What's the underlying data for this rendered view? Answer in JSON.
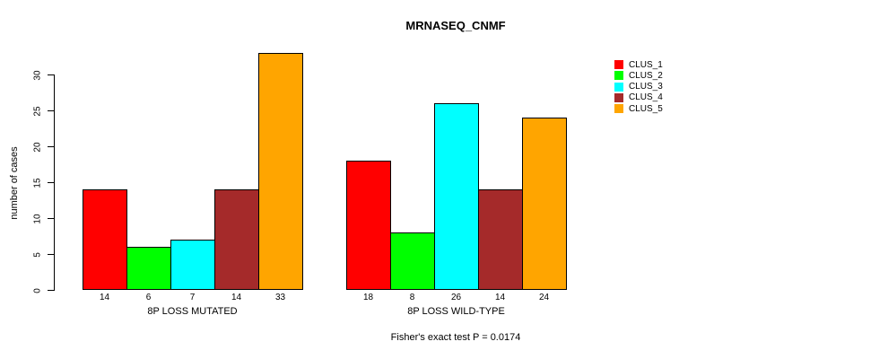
{
  "chart_data": {
    "type": "bar",
    "title": "MRNASEQ_CNMF",
    "ylabel": "number of cases",
    "xlabel": "",
    "groups": [
      "8P LOSS MUTATED",
      "8P LOSS WILD-TYPE"
    ],
    "series": [
      {
        "name": "CLUS_1",
        "color": "#ff0000",
        "values": [
          14,
          18
        ]
      },
      {
        "name": "CLUS_2",
        "color": "#00ff00",
        "values": [
          6,
          8
        ]
      },
      {
        "name": "CLUS_3",
        "color": "#00ffff",
        "values": [
          7,
          26
        ]
      },
      {
        "name": "CLUS_4",
        "color": "#a52a2a",
        "values": [
          14,
          14
        ]
      },
      {
        "name": "CLUS_5",
        "color": "#ffa500",
        "values": [
          33,
          24
        ]
      }
    ],
    "yticks": [
      0,
      5,
      10,
      15,
      20,
      25,
      30
    ],
    "ylim": [
      0,
      33
    ],
    "grid": false,
    "show_bar_values": true,
    "legend_position": "top-right",
    "annotation": "Fisher's exact test P = 0.0174",
    "axis_color": "#000000",
    "background_color": "#ffffff"
  }
}
